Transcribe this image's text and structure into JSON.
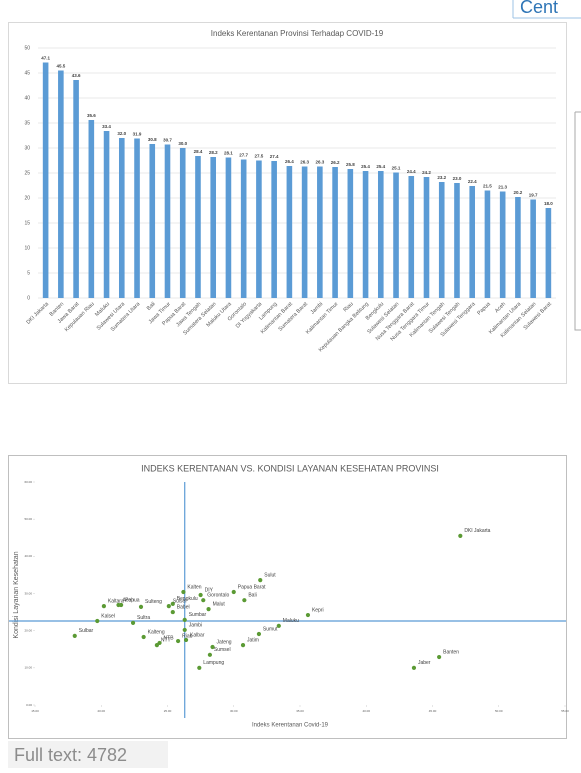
{
  "header_fragment": "Cent",
  "footer": "Full text: 4782",
  "chart_data": [
    {
      "type": "bar",
      "title": "Indeks Kerentanan Provinsi Terhadap COVID-19",
      "categories": [
        "DKI Jakarta",
        "Banten",
        "Jawa Barat",
        "Kepulauan Riau",
        "Maluku",
        "Sulawesi Utara",
        "Sumatera Utara",
        "Bali",
        "Jawa Timur",
        "Papua Barat",
        "Jawa Tengah",
        "Sumatera Selatan",
        "Maluku Utara",
        "Gorontalo",
        "DI Yogyakarta",
        "Lampung",
        "Kalimantan Barat",
        "Sumatera Barat",
        "Jambi",
        "Kalimantan Timur",
        "Riau",
        "Kepulauan Bangka Belitung",
        "Bengkulu",
        "Sulawesi Selatan",
        "Nusa Tenggara Barat",
        "Nusa Tenggara Timur",
        "Kalimantan Tengah",
        "Sulawesi Tengah",
        "Sulawesi Tenggara",
        "Papua",
        "Aceh",
        "Kalimantan Utara",
        "Kalimantan Selatan",
        "Sulawesi Barat"
      ],
      "values": [
        47.1,
        45.5,
        43.6,
        35.6,
        33.4,
        32.0,
        31.9,
        30.8,
        30.7,
        30.0,
        28.4,
        28.2,
        28.1,
        27.7,
        27.5,
        27.4,
        26.4,
        26.3,
        26.3,
        26.2,
        25.8,
        25.4,
        25.4,
        25.1,
        24.4,
        24.2,
        23.2,
        23.0,
        22.4,
        21.5,
        21.3,
        20.2,
        19.7,
        18.0
      ],
      "value_labels": [
        "47.1",
        "45.5",
        "43.6",
        "35.6",
        "33.4",
        "32.0",
        "31.9",
        "30.8",
        "30.7",
        "30.0",
        "28.4",
        "28.2",
        "28.1",
        "27.7",
        "27.5",
        "27.4",
        "26.4",
        "26.3",
        "26.3",
        "26.2",
        "25.8",
        "25.4",
        "25.4",
        "25.1",
        "24.4",
        "24.2",
        "23.2",
        "23.0",
        "22.4",
        "21.5",
        "21.3",
        "20.2",
        "19.7",
        "18.0"
      ],
      "color": "#5b9bd5",
      "ylim": [
        0,
        50
      ],
      "yticks": [
        0,
        5,
        10,
        15,
        20,
        25,
        30,
        35,
        40,
        45,
        50
      ],
      "grid": true
    },
    {
      "type": "scatter",
      "title": "INDEKS KERENTANAN VS. KONDISI LAYANAN KESEHATAN PROVINSI",
      "xlabel": "Indeks Kerentanan Covid-19",
      "ylabel": "Kondisi Layanan Kesehatan",
      "point_labels": [
        "DKI Jakarta",
        "Jaber",
        "Banten",
        "Kepri",
        "Maluku",
        "Sumut",
        "Jatim",
        "Sulut",
        "Bali",
        "Malut",
        "Papua Barat",
        "DIY",
        "Gorontalo",
        "Kalten",
        "Bengkulu",
        "Sulsel",
        "Babel",
        "Sumbar",
        "Jambi",
        "Kalbar",
        "Riau",
        "NTB",
        "NTT",
        "Jateng",
        "Sumsel",
        "Lampung",
        "Sulteng",
        "Papua",
        "Aceh",
        "Kaltara",
        "Kalsel",
        "Sultra",
        "Sulbar",
        "Kalteng"
      ],
      "x": [
        47.1,
        43.6,
        45.5,
        35.6,
        33.4,
        31.9,
        30.7,
        32.0,
        30.8,
        28.1,
        30.0,
        27.5,
        27.7,
        26.2,
        25.4,
        25.1,
        25.4,
        26.3,
        26.3,
        26.4,
        25.8,
        24.4,
        24.2,
        28.4,
        28.2,
        27.4,
        23.0,
        21.5,
        21.3,
        20.2,
        19.7,
        22.4,
        18.0,
        23.2
      ],
      "values": [
        45.5,
        10.0,
        12.9,
        24.2,
        21.3,
        19.1,
        16.1,
        33.6,
        28.2,
        25.8,
        30.4,
        29.6,
        28.2,
        30.4,
        27.2,
        26.6,
        25.0,
        22.9,
        20.2,
        17.5,
        17.2,
        16.7,
        16.1,
        15.6,
        13.5,
        10.0,
        26.4,
        26.9,
        26.9,
        26.6,
        22.6,
        22.1,
        18.6,
        18.3
      ],
      "color": "#5b9a34",
      "xref": 26.3,
      "yref": 22.6,
      "refcolor": "#5b9bd5",
      "xlim": [
        15,
        55
      ],
      "xticks": [
        {
          "value": 15,
          "label": "15.00"
        },
        {
          "value": 20,
          "label": "20.00"
        },
        {
          "value": 25,
          "label": "25.00"
        },
        {
          "value": 30,
          "label": "30.00"
        },
        {
          "value": 35,
          "label": "35.00"
        },
        {
          "value": 40,
          "label": "40.00"
        },
        {
          "value": 45,
          "label": "45.00"
        },
        {
          "value": 50,
          "label": "50.00"
        },
        {
          "value": 55,
          "label": "55.00"
        }
      ],
      "ylim": [
        0,
        60
      ],
      "yticks": [
        {
          "value": 0,
          "label": "0.00"
        },
        {
          "value": 10,
          "label": "10.00"
        },
        {
          "value": 20,
          "label": "20.00"
        },
        {
          "value": 30,
          "label": "30.00"
        },
        {
          "value": 40,
          "label": "40.00"
        },
        {
          "value": 50,
          "label": "50.00"
        },
        {
          "value": 60,
          "label": "60.00"
        }
      ]
    }
  ]
}
